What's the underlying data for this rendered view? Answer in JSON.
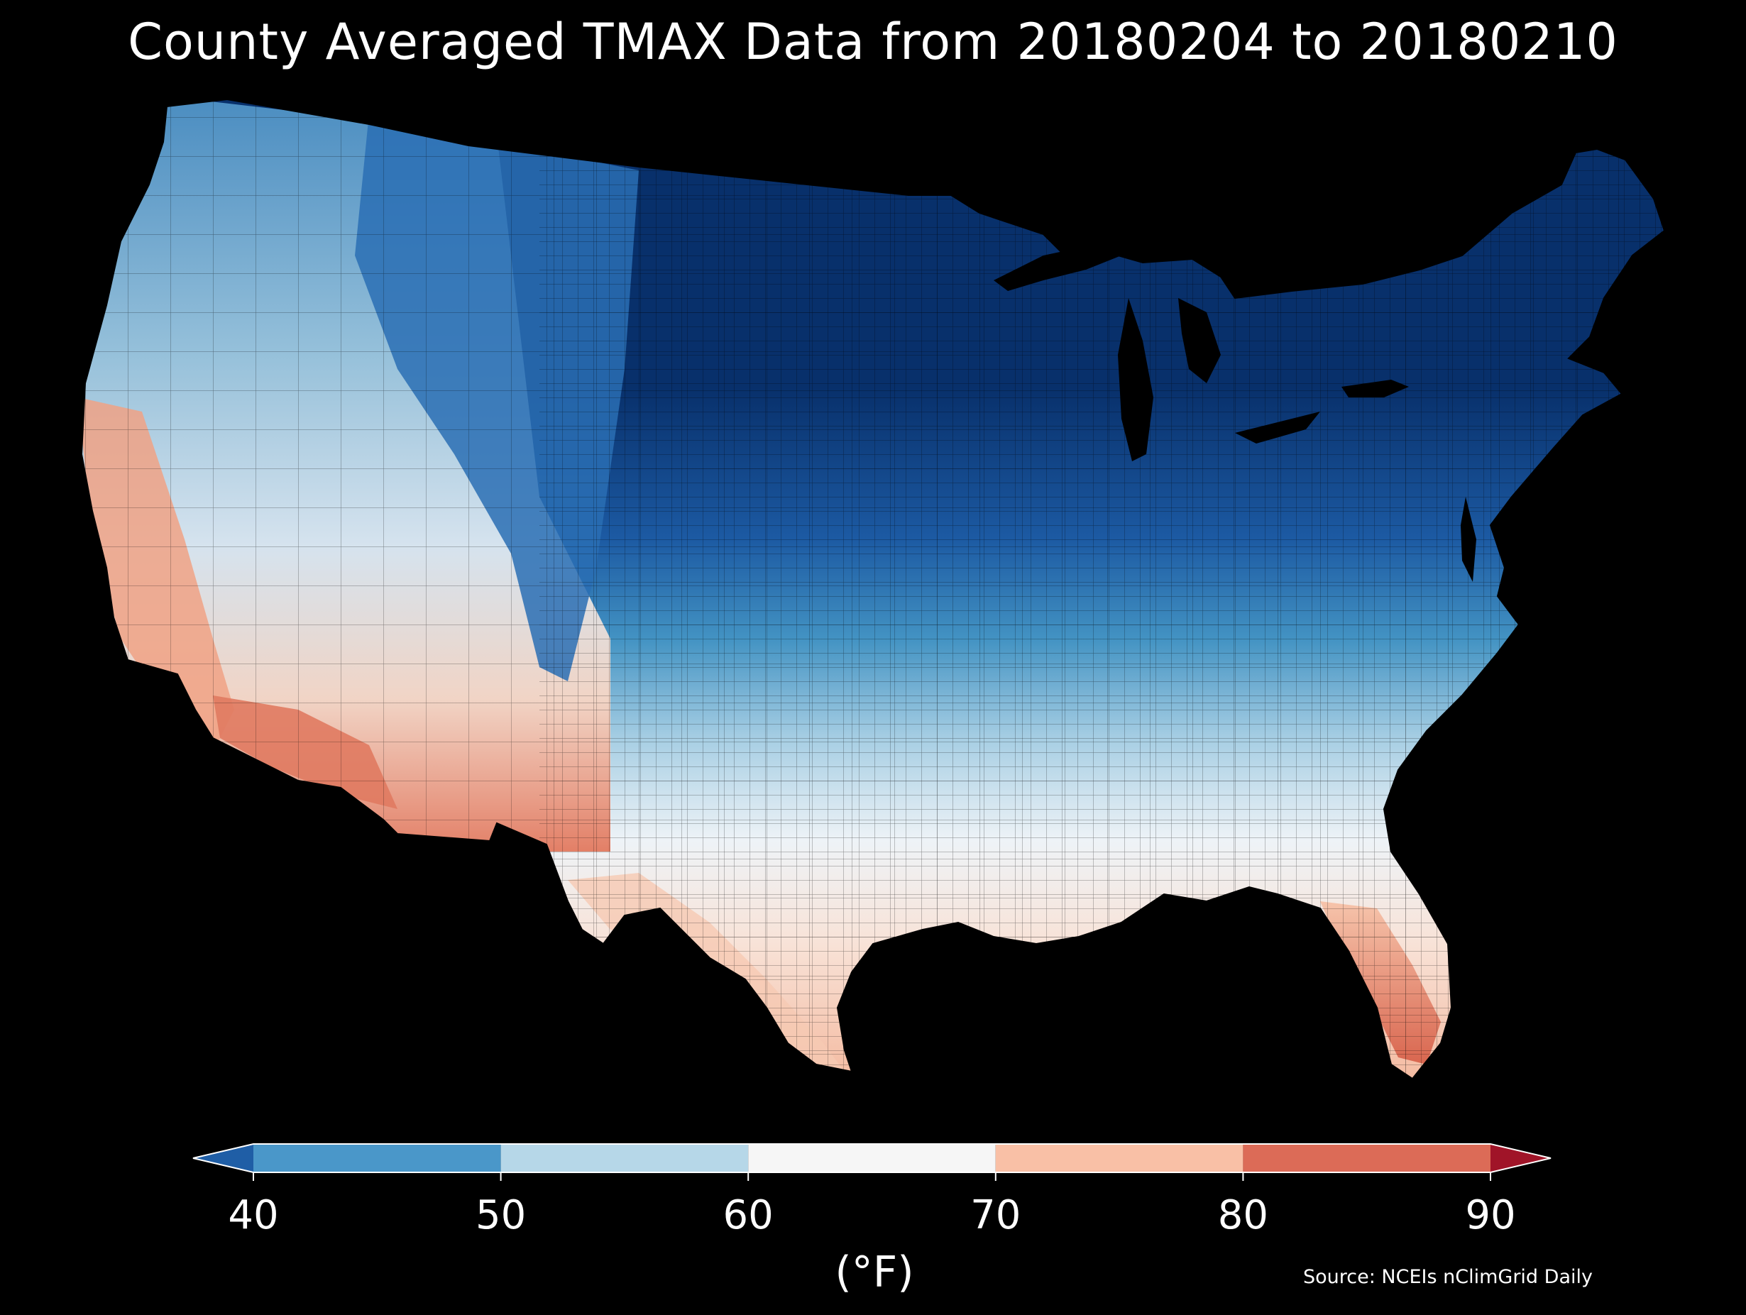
{
  "title": "County Averaged TMAX Data from 20180204 to 20180210",
  "colorbar": {
    "ticks": [
      "40",
      "50",
      "60",
      "70",
      "80",
      "90"
    ],
    "bins": [
      {
        "from": 40,
        "to": 50,
        "color": "#4a97c9"
      },
      {
        "from": 50,
        "to": 60,
        "color": "#b6d7e8"
      },
      {
        "from": 60,
        "to": 70,
        "color": "#f6f6f6"
      },
      {
        "from": 70,
        "to": 80,
        "color": "#f9c0a6"
      },
      {
        "from": 80,
        "to": 90,
        "color": "#dc6b57"
      }
    ],
    "under_color": "#1f5ea6",
    "over_color": "#a01428",
    "unit": "(°F)"
  },
  "source": "Source: NCEIs nClimGrid Daily",
  "map": {
    "region": "Contiguous United States counties",
    "colors": {
      "very_cold": "#08306b",
      "cold": "#2166ac",
      "cool": "#4393c3",
      "mild": "#92c5de",
      "neutral": "#f2f2f2",
      "warm": "#f4a582",
      "hot": "#d6604d"
    }
  }
}
